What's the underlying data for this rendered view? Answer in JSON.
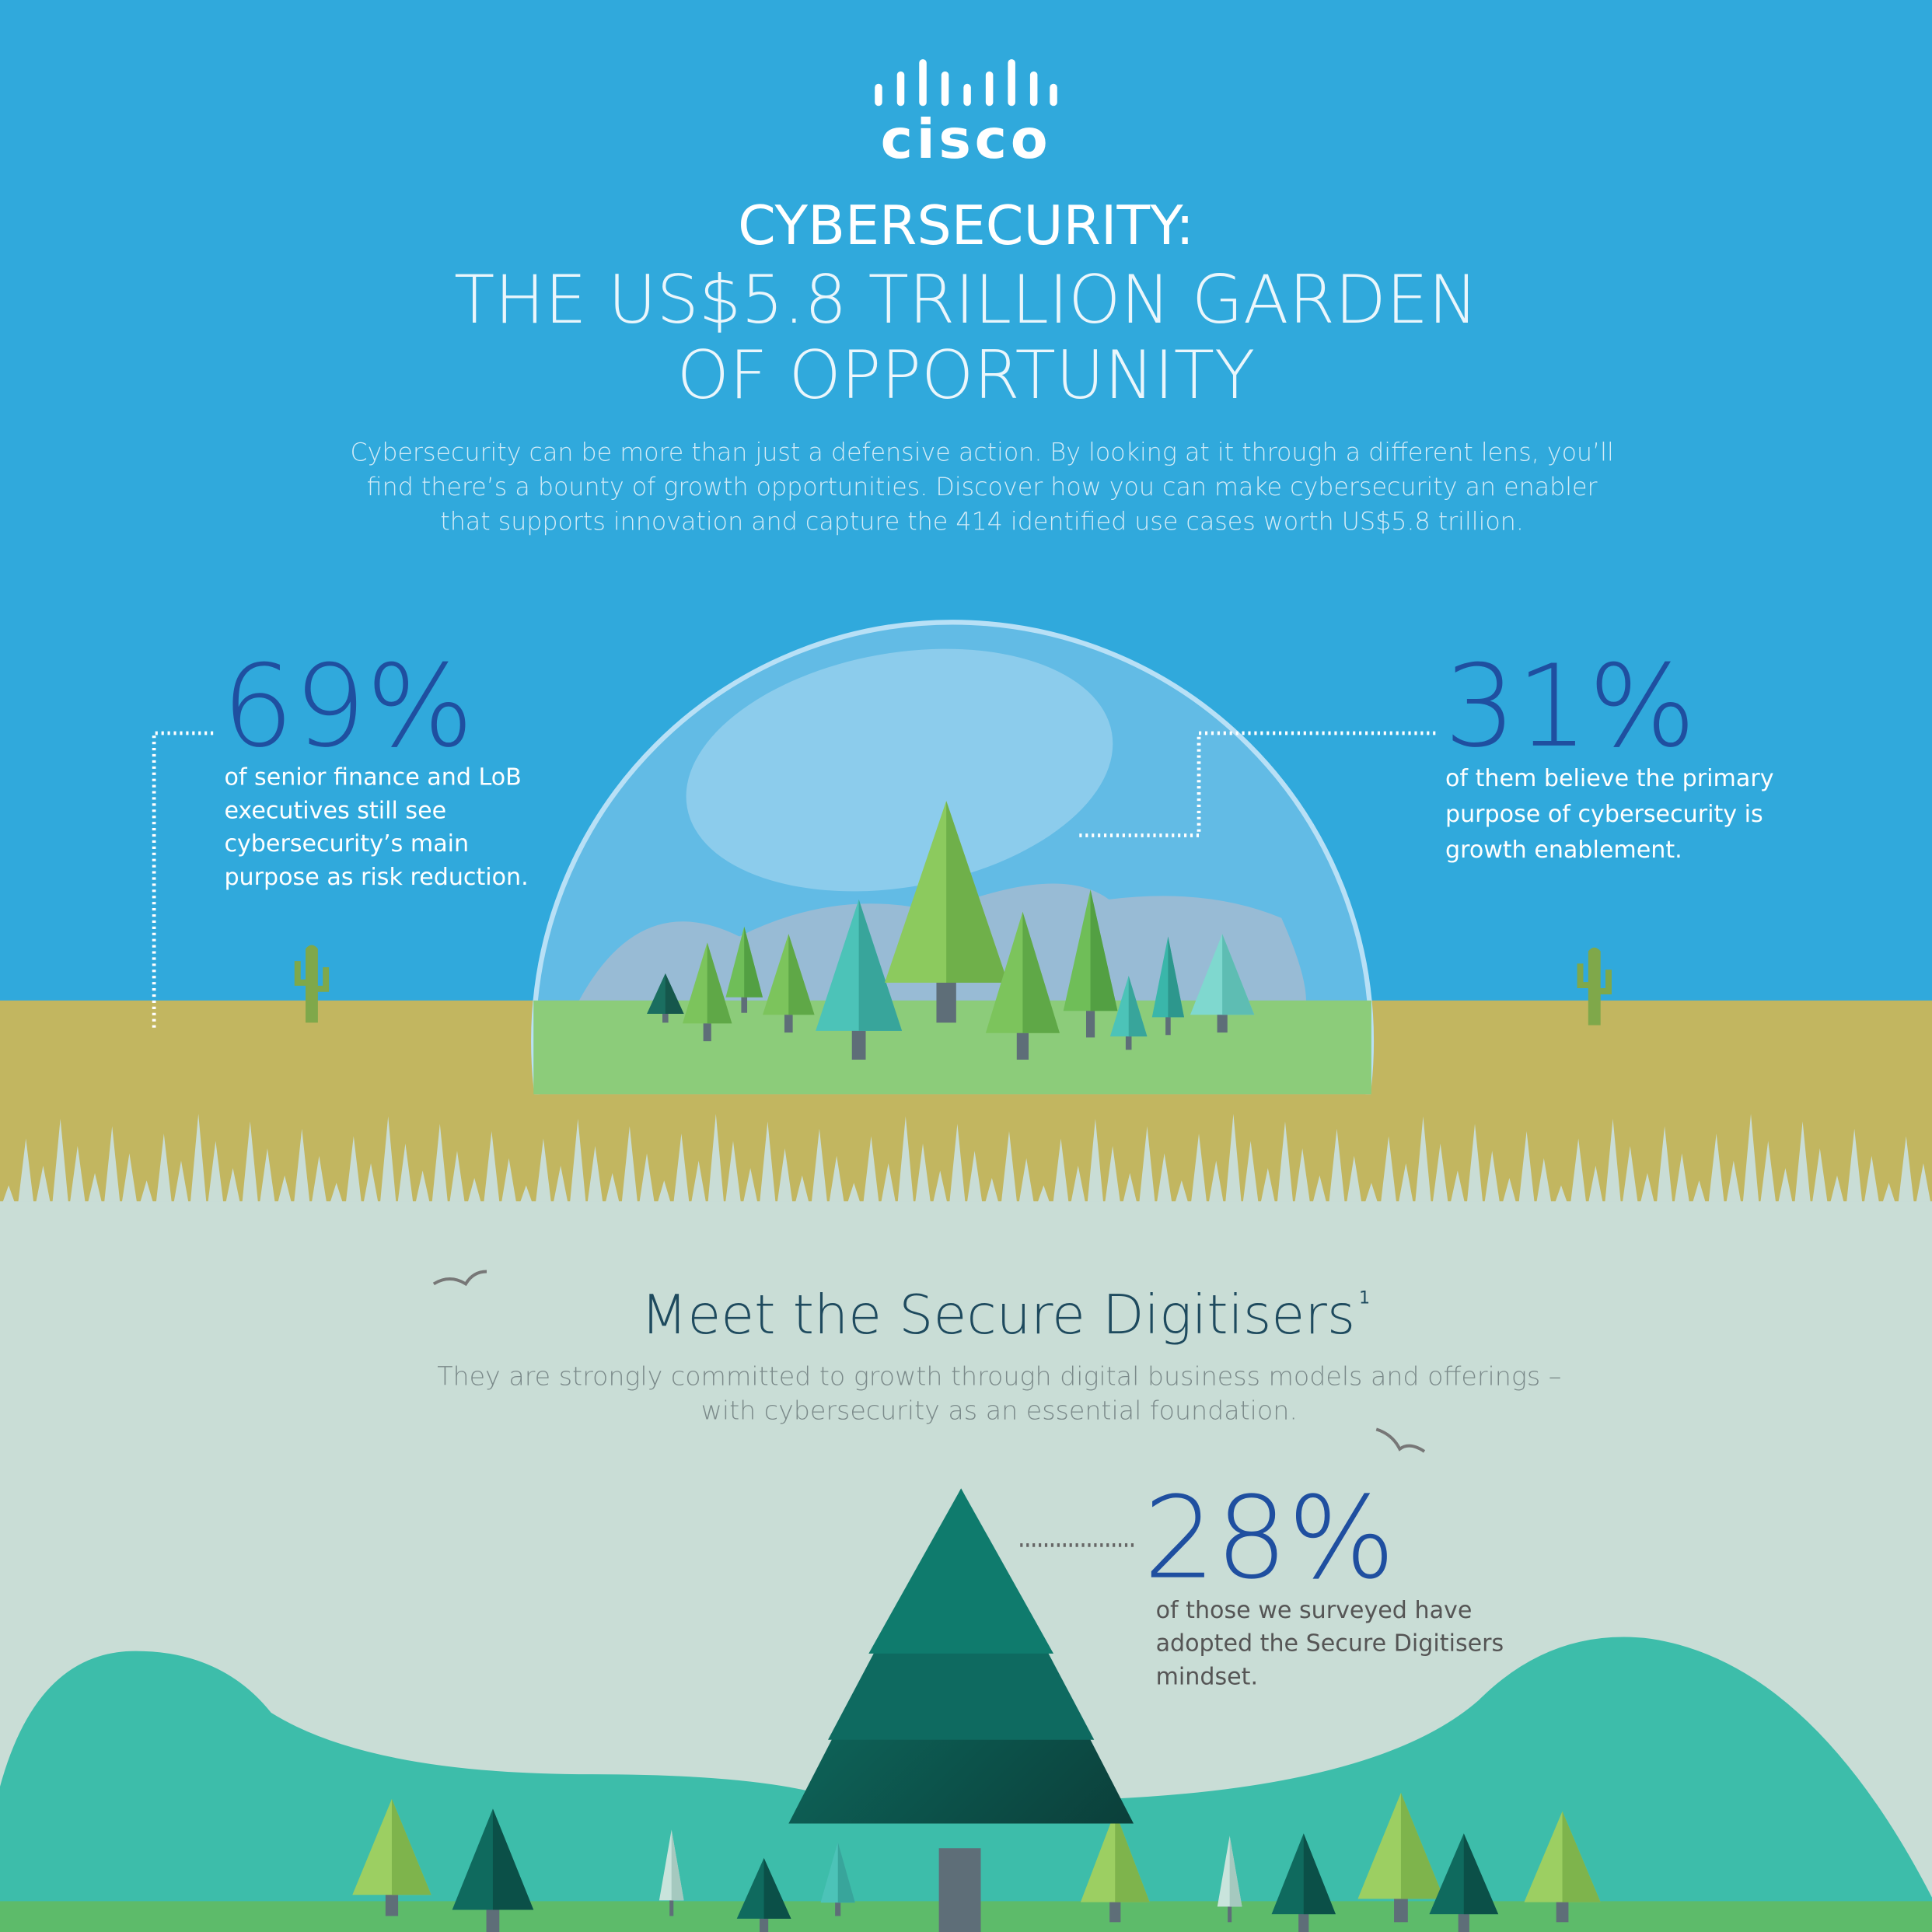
{
  "header": {
    "logo": "cisco",
    "title": "CYBERSECURITY:",
    "subtitle_lines": [
      "THE US$5.8 TRILLION GARDEN",
      "OF OPPORTUNITY"
    ],
    "intro_lines": [
      "Cybersecurity can be more than just a defensive action. By looking at it through a different lens, you’ll",
      "find there’s a bounty of growth opportunities. Discover how you can make cybersecurity an enabler",
      "that supports innovation and capture the 414 identified use cases worth US$5.8 trillion."
    ]
  },
  "stats": [
    {
      "figure": "69%",
      "lines": [
        "of senior finance and LoB",
        "executives still see",
        "cybersecurity’s main",
        "purpose as risk reduction."
      ]
    },
    {
      "figure": "31%",
      "lines": [
        "of them believe the primary",
        "purpose of cybersecurity is",
        "growth enablement."
      ]
    },
    {
      "figure": "28%",
      "lines": [
        "of those we surveyed have",
        "adopted the Secure Digitisers",
        "mindset."
      ]
    }
  ],
  "section": {
    "title": "Meet the Secure Digitisers",
    "footnote_mark": "1",
    "description_lines": [
      "They are strongly committed to growth through digital business models and offerings –",
      "with cybersecurity as an essential foundation."
    ]
  }
}
